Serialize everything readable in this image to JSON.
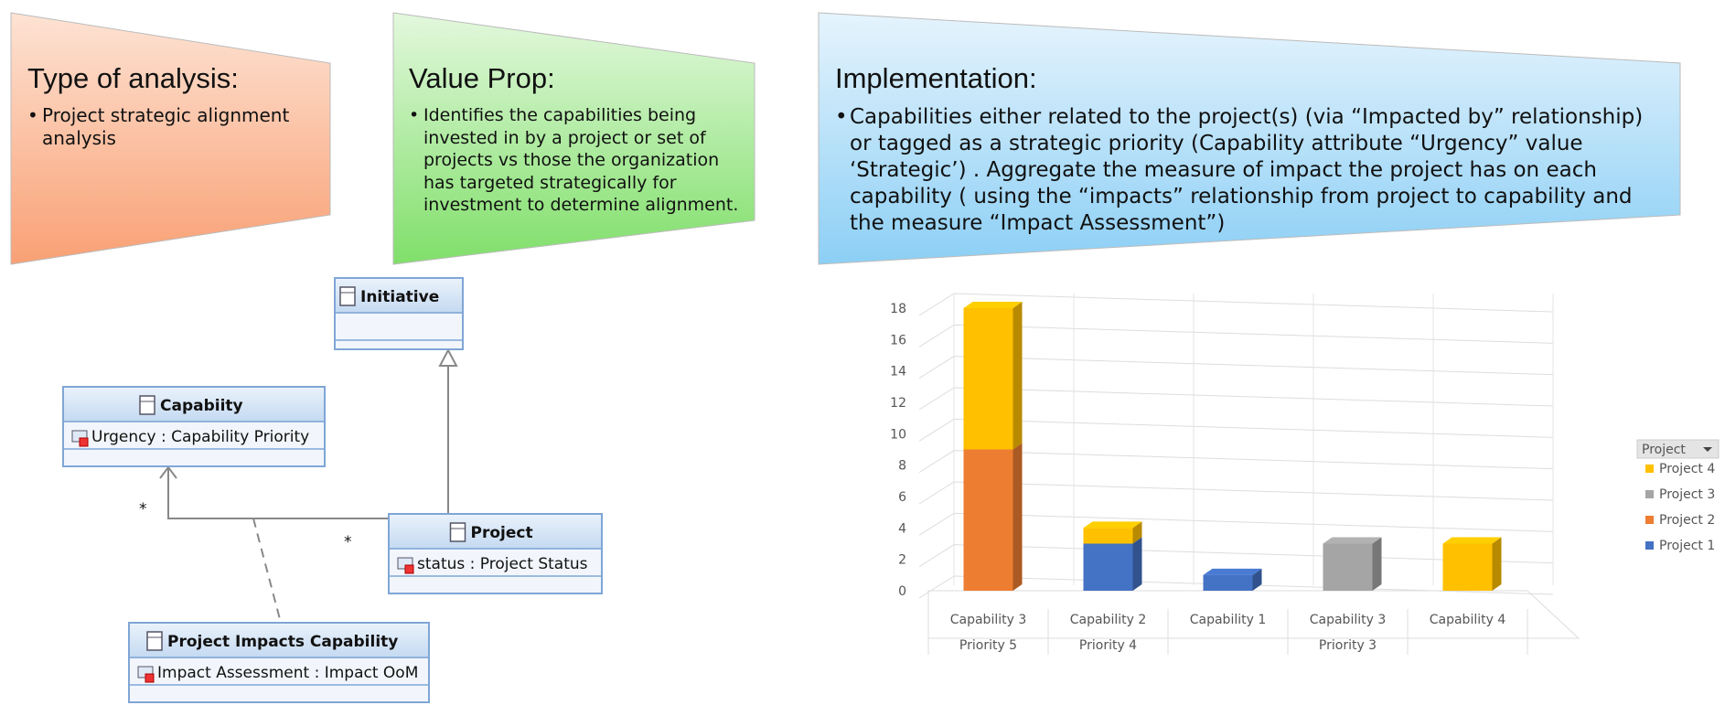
{
  "panels": [
    {
      "title": "Type of analysis:",
      "bullets": [
        "Project strategic alignment analysis"
      ]
    },
    {
      "title": "Value Prop:",
      "bullets": [
        "Identifies the capabilities being invested in by a project or set of projects vs those the organization has targeted strategically for investment to determine alignment."
      ]
    },
    {
      "title": "Implementation:",
      "bullets": [
        "Capabilities either related to the project(s) (via “Impacted by” relationship) or tagged as a strategic priority (Capability attribute “Urgency” value ‘Strategic’) . Aggregate the measure of impact the project has on each capability ( using the “impacts” relationship from project to capability and the measure “Impact Assessment”)"
      ]
    }
  ],
  "uml": {
    "classes": [
      {
        "name": "Initiative",
        "attributes": []
      },
      {
        "name": "Capabiity",
        "attributes": [
          "Urgency : Capability Priority"
        ]
      },
      {
        "name": "Project",
        "attributes": [
          "status : Project Status"
        ]
      },
      {
        "name": "Project Impacts Capability",
        "attributes": [
          "Impact Assessment : Impact OoM"
        ]
      }
    ],
    "multiplicities": [
      "*",
      "*"
    ]
  },
  "chart_data": {
    "type": "bar",
    "stacked": true,
    "categories": [
      "Capability 3",
      "Capability 2",
      "Capability 1",
      "Capability 3",
      "Capability 4"
    ],
    "category_groups": [
      "Priority 5",
      "Priority 4",
      null,
      "Priority 3",
      null
    ],
    "series": [
      {
        "name": "Project 1",
        "color": "#4472c4",
        "values": [
          null,
          3,
          1,
          null,
          null
        ]
      },
      {
        "name": "Project 2",
        "color": "#ed7d31",
        "values": [
          9,
          null,
          null,
          null,
          null
        ]
      },
      {
        "name": "Project 3",
        "color": "#a5a5a5",
        "values": [
          null,
          null,
          null,
          3,
          null
        ]
      },
      {
        "name": "Project 4",
        "color": "#ffc000",
        "values": [
          9,
          1,
          null,
          null,
          3
        ]
      }
    ],
    "legend_title": "Project",
    "ylim": [
      0,
      18
    ],
    "yticks": [
      0,
      2,
      4,
      6,
      8,
      10,
      12,
      14,
      16,
      18
    ],
    "grid": true,
    "legend": "right"
  }
}
